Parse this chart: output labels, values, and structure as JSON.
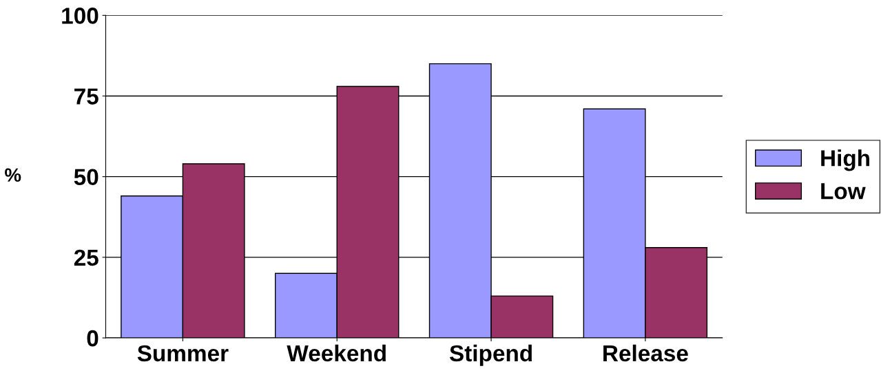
{
  "chart_data": {
    "type": "bar",
    "ylabel": "%",
    "categories": [
      "Summer",
      "Weekend",
      "Stipend",
      "Release"
    ],
    "series": [
      {
        "name": "High",
        "color": "#9999ff",
        "values": [
          44,
          20,
          85,
          71
        ]
      },
      {
        "name": "Low",
        "color": "#993366",
        "values": [
          54,
          78,
          13,
          28
        ]
      }
    ],
    "ylim": [
      0,
      100
    ],
    "yticks": [
      0,
      25,
      50,
      75,
      100
    ],
    "grid": "y",
    "legend": "right"
  }
}
